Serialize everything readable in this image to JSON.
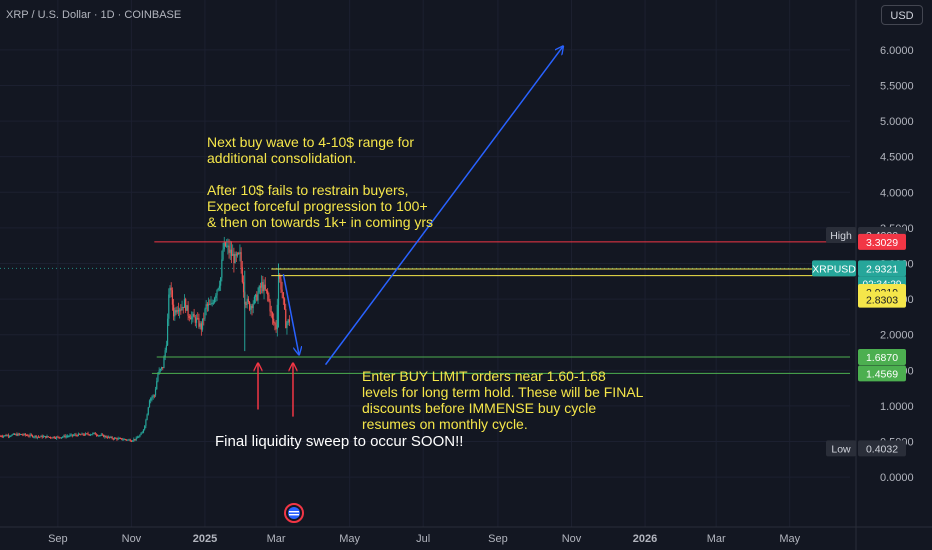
{
  "header": {
    "ticker": "XRP / U.S. Dollar · 1D · COINBASE",
    "currency_button": "USD"
  },
  "annotations": {
    "top_note": "Next buy wave to 4-10$ range for\nadditional consolidation.\n\nAfter 10$ fails to restrain buyers,\nExpect forceful progression to 100+\n& then on towards 1k+ in coming yrs",
    "buy_note": "Enter BUY LIMIT orders near 1.60-1.68\nlevels for long term hold. These will be FINAL\ndiscounts before IMMENSE buy cycle\nresumes on monthly cycle.",
    "sweep_note": "Final liquidity sweep to occur SOON!!"
  },
  "colors": {
    "background": "#131722",
    "up_candle": "#26a69a",
    "down_candle": "#ef5350",
    "red_line": "#f23645",
    "yellow_line": "#f5e64a",
    "green_line": "#4caf50",
    "blue_arrow": "#2962ff",
    "annotation_text": "#f5e64a"
  },
  "chart_data": {
    "type": "candlestick",
    "y_axis": {
      "ticks": [
        0.0,
        0.5,
        1.0,
        1.5,
        2.0,
        2.5,
        3.0,
        3.5,
        4.0,
        4.5,
        5.0,
        5.5,
        6.0
      ],
      "tick_labels": [
        "0.0000",
        "0.5000",
        "1.0000",
        "1.5000",
        "2.0000",
        "2.5000",
        "3.0000",
        "3.5000",
        "4.0000",
        "4.5000",
        "5.0000",
        "5.5000",
        "6.0000"
      ],
      "ylim": [
        -0.7,
        6.7
      ]
    },
    "x_axis": {
      "ticks": [
        "Sep",
        "Nov",
        "2025",
        "Mar",
        "May",
        "Jul",
        "Sep",
        "Nov",
        "2026",
        "Mar",
        "May"
      ],
      "tick_dates": [
        "2024-09-01",
        "2024-11-01",
        "2025-01-01",
        "2025-03-01",
        "2025-05-01",
        "2025-07-01",
        "2025-09-01",
        "2025-11-01",
        "2026-01-01",
        "2026-03-01",
        "2026-05-01"
      ],
      "xlim": [
        "2024-07-15",
        "2026-06-20"
      ]
    },
    "price_path": [
      [
        "2024-07-15",
        0.58
      ],
      [
        "2024-08-01",
        0.6
      ],
      [
        "2024-08-15",
        0.57
      ],
      [
        "2024-09-01",
        0.56
      ],
      [
        "2024-09-15",
        0.59
      ],
      [
        "2024-10-01",
        0.61
      ],
      [
        "2024-10-15",
        0.55
      ],
      [
        "2024-11-01",
        0.52
      ],
      [
        "2024-11-05",
        0.54
      ],
      [
        "2024-11-10",
        0.62
      ],
      [
        "2024-11-13",
        0.8
      ],
      [
        "2024-11-16",
        1.1
      ],
      [
        "2024-11-20",
        1.15
      ],
      [
        "2024-11-23",
        1.45
      ],
      [
        "2024-11-27",
        1.55
      ],
      [
        "2024-11-30",
        1.9
      ],
      [
        "2024-12-02",
        2.5
      ],
      [
        "2024-12-03",
        2.7
      ],
      [
        "2024-12-06",
        2.3
      ],
      [
        "2024-12-09",
        2.4
      ],
      [
        "2024-12-12",
        2.38
      ],
      [
        "2024-12-15",
        2.45
      ],
      [
        "2024-12-18",
        2.3
      ],
      [
        "2024-12-21",
        2.25
      ],
      [
        "2024-12-25",
        2.2
      ],
      [
        "2024-12-29",
        2.1
      ],
      [
        "2025-01-02",
        2.4
      ],
      [
        "2025-01-06",
        2.4
      ],
      [
        "2025-01-10",
        2.6
      ],
      [
        "2025-01-14",
        2.8
      ],
      [
        "2025-01-16",
        3.2
      ],
      [
        "2025-01-18",
        3.25
      ],
      [
        "2025-01-22",
        3.15
      ],
      [
        "2025-01-26",
        3.05
      ],
      [
        "2025-01-30",
        3.1
      ],
      [
        "2025-02-03",
        2.5
      ],
      [
        "2025-02-07",
        2.4
      ],
      [
        "2025-02-12",
        2.5
      ],
      [
        "2025-02-17",
        2.7
      ],
      [
        "2025-02-22",
        2.55
      ],
      [
        "2025-02-26",
        2.2
      ],
      [
        "2025-03-01",
        2.1
      ],
      [
        "2025-03-03",
        2.85
      ],
      [
        "2025-03-06",
        2.6
      ],
      [
        "2025-03-09",
        2.15
      ],
      [
        "2025-03-12",
        2.2
      ]
    ],
    "horizontal_lines": [
      {
        "value": 3.3029,
        "color": "red"
      },
      {
        "value": 2.9219,
        "color": "yellow"
      },
      {
        "value": 2.8303,
        "color": "yellow"
      },
      {
        "value": 1.687,
        "color": "green"
      },
      {
        "value": 1.4569,
        "color": "green"
      }
    ],
    "price_labels": [
      {
        "text": "High",
        "value_text": "3.4000",
        "value": 3.4,
        "style": "high"
      },
      {
        "text": "",
        "value_text": "3.3029",
        "value": 3.3029,
        "style": "red"
      },
      {
        "text": "XRPUSD",
        "value_text": "2.9321",
        "value": 2.9321,
        "style": "last",
        "countdown": "02:34:29"
      },
      {
        "text": "",
        "value_text": "2.9219",
        "value": 2.9219,
        "style": "yellow"
      },
      {
        "text": "",
        "value_text": "2.8303",
        "value": 2.8303,
        "style": "yellow"
      },
      {
        "text": "",
        "value_text": "1.6870",
        "value": 1.687,
        "style": "green"
      },
      {
        "text": "",
        "value_text": "1.4569",
        "value": 1.4569,
        "style": "green"
      },
      {
        "text": "Low",
        "value_text": "0.4032",
        "value": 0.4032,
        "style": "low"
      }
    ],
    "arrows": [
      {
        "from": [
          "2025-03-07",
          2.85
        ],
        "to": [
          "2025-03-20",
          1.72
        ],
        "color": "blue"
      },
      {
        "from": [
          "2025-04-11",
          1.58
        ],
        "to": [
          "2025-10-25",
          6.05
        ],
        "color": "blue"
      },
      {
        "from": [
          "2025-02-14",
          0.95
        ],
        "to": [
          "2025-02-14",
          1.6
        ],
        "color": "red"
      },
      {
        "from": [
          "2025-03-15",
          0.85
        ],
        "to": [
          "2025-03-15",
          1.6
        ],
        "color": "red"
      }
    ]
  }
}
